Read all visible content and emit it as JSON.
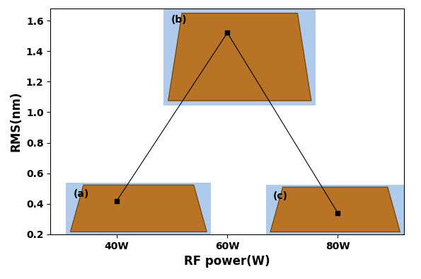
{
  "chart_data": {
    "type": "line",
    "x_label": "RF power(W)",
    "y_label": "RMS(nm)",
    "x": [
      40,
      60,
      80
    ],
    "values": [
      0.42,
      1.52,
      0.34
    ],
    "color": "#000000",
    "marker": "square",
    "line_style": "solid",
    "annotations": [
      "(a)",
      "(b)",
      "(c)"
    ],
    "xlim": [
      28,
      92
    ],
    "xticks": [
      {
        "value": 40,
        "label": "40W"
      },
      {
        "value": 60,
        "label": "60W"
      },
      {
        "value": 80,
        "label": "80W"
      }
    ],
    "ylim": [
      0.2,
      1.68
    ],
    "yticks": [
      0.2,
      0.4,
      0.6,
      0.8,
      1.0,
      1.2,
      1.4,
      1.6
    ],
    "grid": false
  }
}
